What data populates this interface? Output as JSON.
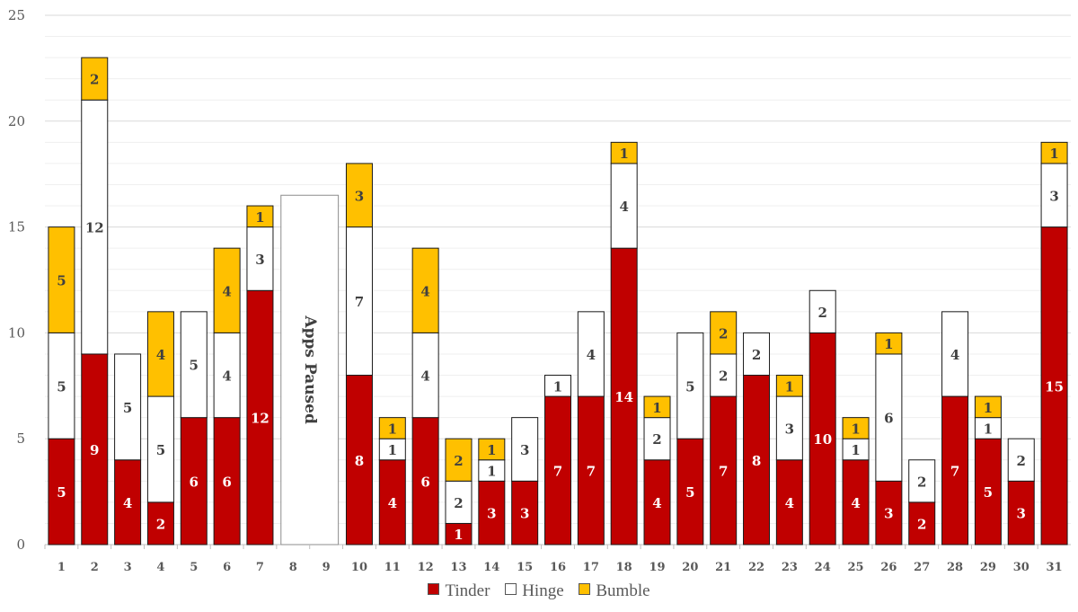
{
  "chart_data": {
    "type": "bar",
    "stacked": true,
    "categories": [
      "1",
      "2",
      "3",
      "4",
      "5",
      "6",
      "7",
      "8",
      "9",
      "10",
      "11",
      "12",
      "13",
      "14",
      "15",
      "16",
      "17",
      "18",
      "19",
      "20",
      "21",
      "22",
      "23",
      "24",
      "25",
      "26",
      "27",
      "28",
      "29",
      "30",
      "31"
    ],
    "series": [
      {
        "name": "Tinder",
        "color": "#c00000",
        "label_color": "#ffffff",
        "values": [
          5,
          9,
          4,
          2,
          6,
          6,
          12,
          null,
          null,
          8,
          4,
          6,
          1,
          3,
          3,
          7,
          7,
          14,
          4,
          5,
          7,
          8,
          4,
          10,
          4,
          3,
          2,
          7,
          5,
          3,
          15
        ]
      },
      {
        "name": "Hinge",
        "color": "#ffffff",
        "label_color": "#404040",
        "values": [
          5,
          12,
          5,
          5,
          5,
          4,
          3,
          null,
          null,
          7,
          1,
          4,
          2,
          1,
          3,
          1,
          4,
          4,
          2,
          5,
          2,
          2,
          3,
          2,
          1,
          6,
          2,
          4,
          1,
          2,
          3
        ]
      },
      {
        "name": "Bumble",
        "color": "#ffc000",
        "label_color": "#404040",
        "values": [
          5,
          2,
          null,
          4,
          null,
          4,
          1,
          null,
          null,
          3,
          1,
          4,
          2,
          1,
          null,
          null,
          null,
          1,
          1,
          null,
          2,
          null,
          1,
          null,
          1,
          1,
          null,
          null,
          1,
          null,
          1
        ]
      }
    ],
    "annotation": {
      "text": "Apps Paused",
      "start_category": "8",
      "end_category": "9",
      "value": 16.5
    },
    "y_ticks": [
      0,
      5,
      10,
      15,
      20,
      25
    ],
    "ylim": [
      0,
      25
    ],
    "title": "",
    "xlabel": "",
    "ylabel": "",
    "grid": true,
    "legend_position": "bottom"
  },
  "legend": {
    "items": [
      "Tinder",
      "Hinge",
      "Bumble"
    ]
  }
}
